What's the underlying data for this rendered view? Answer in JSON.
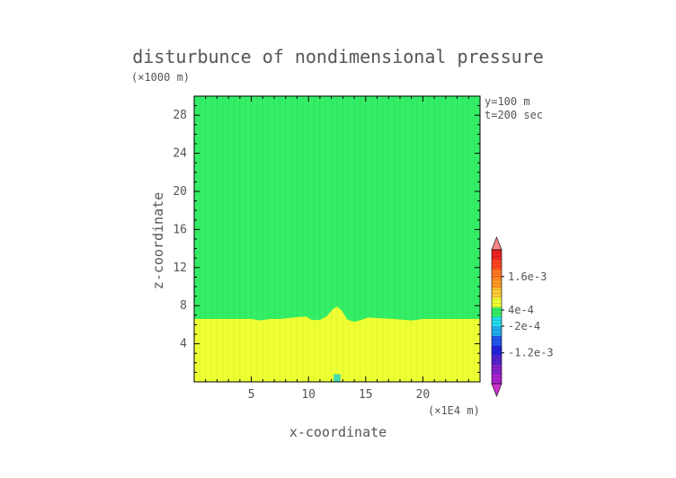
{
  "chart_data": {
    "type": "heatmap",
    "title": "disturbunce of nondimensional pressure",
    "y_scale_label": "(×1000 m)",
    "x_scale_label": "(×1E4 m)",
    "xlabel": "x-coordinate",
    "ylabel": "z-coordinate",
    "info": [
      "y=100 m",
      "t=200 sec"
    ],
    "xlim": [
      0,
      25
    ],
    "ylim": [
      0,
      30
    ],
    "xticks": [
      5,
      10,
      15,
      20
    ],
    "xtick_labels": [
      "5",
      "10",
      "15",
      "20"
    ],
    "yticks": [
      4,
      8,
      12,
      16,
      20,
      24,
      28
    ],
    "ytick_labels": [
      "4",
      "8",
      "12",
      "16",
      "20",
      "24",
      "28"
    ],
    "regions": [
      {
        "name": "upper",
        "color": "#33ee66",
        "z_range": [
          6.6,
          30
        ]
      },
      {
        "name": "lower",
        "color": "#eeff33",
        "z_range": [
          0,
          6.6
        ]
      }
    ],
    "interface_profile": {
      "x": [
        0,
        5,
        5.8,
        6.6,
        7.5,
        9,
        9.8,
        10.3,
        11,
        11.6,
        12.1,
        12.5,
        12.9,
        13.4,
        14,
        14.6,
        15.2,
        16,
        17.5,
        19,
        20,
        25
      ],
      "z": [
        6.6,
        6.6,
        6.45,
        6.6,
        6.6,
        6.8,
        6.85,
        6.5,
        6.5,
        6.9,
        7.6,
        7.9,
        7.5,
        6.55,
        6.3,
        6.5,
        6.75,
        6.7,
        6.6,
        6.45,
        6.6,
        6.6
      ]
    },
    "surface_anomaly": {
      "x": [
        12.2,
        12.8
      ],
      "z": [
        0,
        0.8
      ],
      "color": "#44ddaa"
    },
    "colorbar": {
      "colors": [
        "#cc33cc",
        "#aa22cc",
        "#8822cc",
        "#5522cc",
        "#2222dd",
        "#2255ee",
        "#22aaee",
        "#22ddee",
        "#33ee66",
        "#eeff33",
        "#ffcc33",
        "#ff9922",
        "#ff7722",
        "#ff4422",
        "#ee2222",
        "#ff8888"
      ],
      "labels": [
        {
          "text": "1.6e-3",
          "at": 0.8
        },
        {
          "text": "4e-4",
          "at": 0.55
        },
        {
          "text": "-2e-4",
          "at": 0.43
        },
        {
          "text": "-1.2e-3",
          "at": 0.23
        }
      ]
    }
  }
}
